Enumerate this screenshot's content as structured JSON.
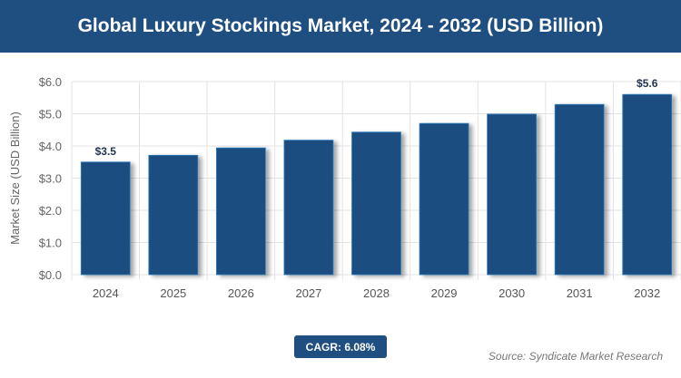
{
  "header": {
    "title": "Global Luxury Stockings Market, 2024 - 2032 (USD Billion)"
  },
  "chart_data": {
    "type": "bar",
    "title": "Global Luxury Stockings Market, 2024 - 2032 (USD Billion)",
    "categories": [
      "2024",
      "2025",
      "2026",
      "2027",
      "2028",
      "2029",
      "2030",
      "2031",
      "2032"
    ],
    "values": [
      3.5,
      3.71,
      3.94,
      4.18,
      4.43,
      4.7,
      4.99,
      5.29,
      5.6
    ],
    "data_labels": {
      "0": "$3.5",
      "8": "$5.6"
    },
    "ylabel": "Market Size (USD Billion)",
    "xlabel": "",
    "ylim": [
      0,
      6
    ],
    "yticks": [
      "$0.0",
      "$1.0",
      "$2.0",
      "$3.0",
      "$4.0",
      "$5.0",
      "$6.0"
    ],
    "grid": true,
    "bar_color": "#1f4e80"
  },
  "footer": {
    "cagr": "CAGR: 6.08%",
    "source": "Source: Syndicate Market Research"
  }
}
